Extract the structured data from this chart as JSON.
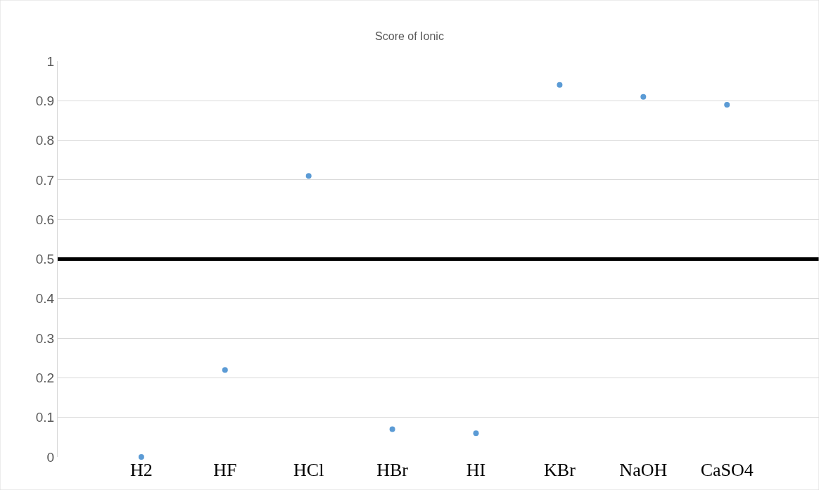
{
  "chart_data": {
    "type": "scatter",
    "title": "Score of Ionic",
    "categories": [
      "H2",
      "HF",
      "HCl",
      "HBr",
      "HI",
      "KBr",
      "NaOH",
      "CaSO4"
    ],
    "series": [
      {
        "color": "#5b9bd5",
        "values": [
          0,
          0.22,
          0.71,
          0.07,
          0.06,
          0.94,
          0.91,
          0.89
        ]
      }
    ],
    "ylim": [
      0,
      1
    ],
    "yticks": [
      0,
      0.1,
      0.2,
      0.3,
      0.4,
      0.5,
      0.6,
      0.7,
      0.8,
      0.9,
      1
    ],
    "ref_lines": [
      {
        "axis": "y",
        "value": 0.5,
        "color": "#000000"
      }
    ],
    "grid": "y",
    "marker": "circle"
  }
}
